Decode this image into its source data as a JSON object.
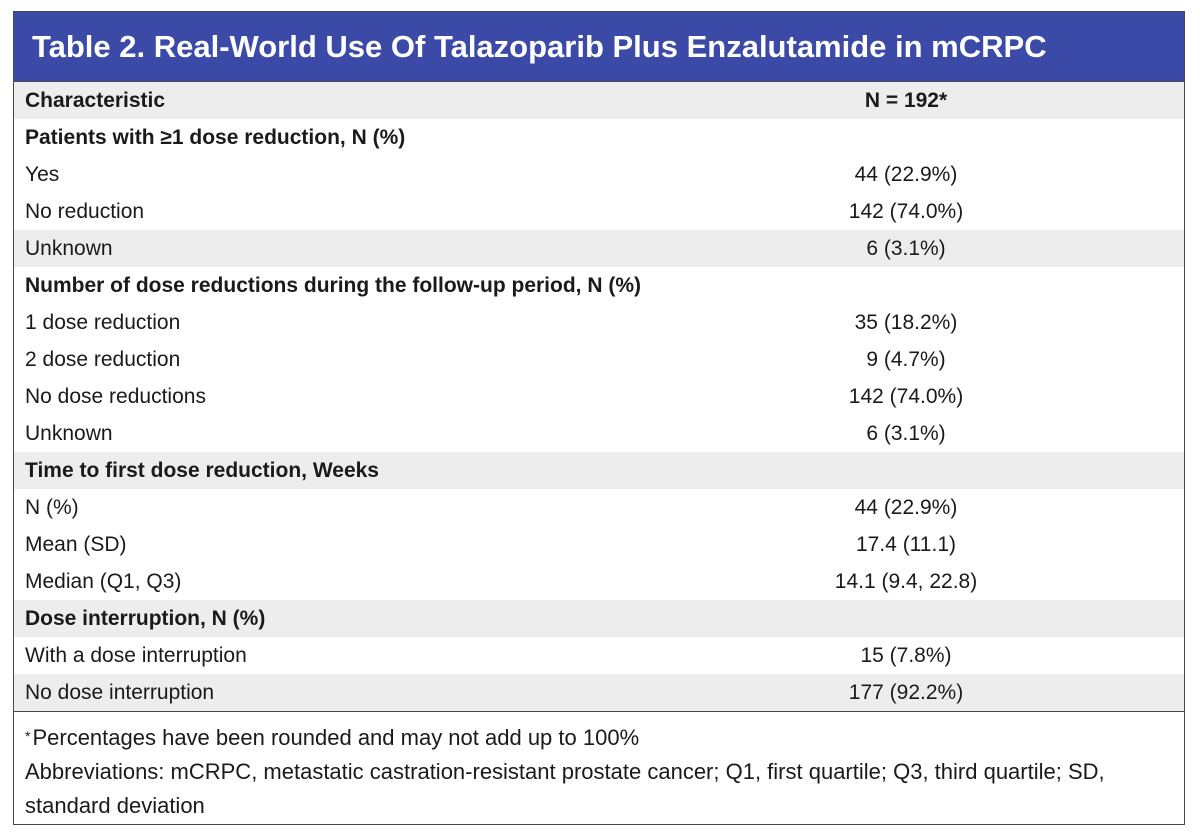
{
  "table": {
    "title": "Table 2. Real-World Use Of Talazoparib Plus Enzalutamide in mCRPC",
    "header": {
      "characteristic": "Characteristic",
      "n": "N = 192*"
    },
    "rows": [
      {
        "label": "Patients with ≥1 dose reduction, N (%)",
        "value": ""
      },
      {
        "label": "Yes",
        "value": "44 (22.9%)"
      },
      {
        "label": "No reduction",
        "value": "142 (74.0%)"
      },
      {
        "label": "Unknown",
        "value": "6 (3.1%)"
      },
      {
        "label": "Number of dose reductions during the follow-up period, N (%)",
        "value": ""
      },
      {
        "label": "1 dose reduction",
        "value": "35 (18.2%)"
      },
      {
        "label": "2 dose reduction",
        "value": "9 (4.7%)"
      },
      {
        "label": "No dose reductions",
        "value": "142 (74.0%)"
      },
      {
        "label": "Unknown",
        "value": "6 (3.1%)"
      },
      {
        "label": "Time to first dose reduction, Weeks",
        "value": ""
      },
      {
        "label": "N (%)",
        "value": "44 (22.9%)"
      },
      {
        "label": "Mean (SD)",
        "value": "17.4 (11.1)"
      },
      {
        "label": "Median (Q1, Q3)",
        "value": "14.1 (9.4, 22.8)"
      },
      {
        "label": "Dose interruption, N (%)",
        "value": ""
      },
      {
        "label": "With a dose interruption",
        "value": "15 (7.8%)"
      },
      {
        "label": "No dose interruption",
        "value": "177 (92.2%)"
      }
    ],
    "footnote_marker": "*",
    "footnote": "Percentages have been rounded and may not add up to 100%",
    "abbreviations": "Abbreviations: mCRPC, metastatic castration-resistant prostate cancer; Q1, first quartile; Q3, third quartile; SD, standard deviation"
  },
  "colors": {
    "title_bg": "#3a4aa6",
    "row_shade": "#ededed",
    "border": "#4a4a4a"
  }
}
